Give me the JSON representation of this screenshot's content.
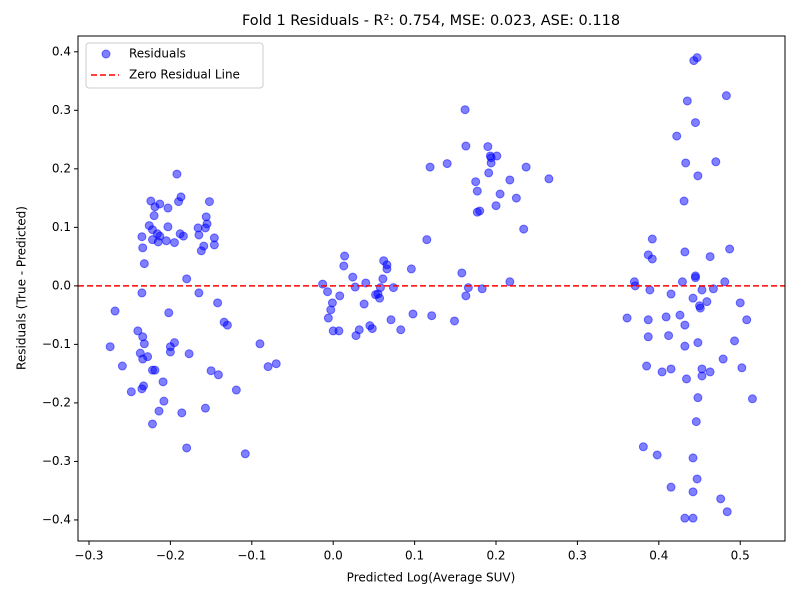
{
  "chart_data": {
    "type": "scatter",
    "title": "Fold 1 Residuals - R²: 0.754, MSE: 0.023, ASE: 0.118",
    "xlabel": "Predicted Log(Average SUV)",
    "ylabel": "Residuals (True - Predicted)",
    "xlim": [
      -0.3135,
      0.555
    ],
    "ylim": [
      -0.436,
      0.427
    ],
    "xticks": [
      {
        "value": -0.3,
        "label": "−0.3"
      },
      {
        "value": -0.2,
        "label": "−0.2"
      },
      {
        "value": -0.1,
        "label": "−0.1"
      },
      {
        "value": 0,
        "label": "0.0"
      },
      0.1,
      0.2,
      0.3,
      0.4,
      0.5
    ],
    "yticks": [
      {
        "value": -0.4,
        "label": "−0.4"
      },
      {
        "value": -0.3,
        "label": "−0.3"
      },
      {
        "value": -0.2,
        "label": "−0.2"
      },
      {
        "value": -0.1,
        "label": "−0.1"
      },
      {
        "value": 0,
        "label": "0.0"
      },
      0.1,
      0.2,
      0.3,
      0.4
    ],
    "legend": "upper left",
    "reference_line": {
      "name": "Zero Residual Line",
      "value": 0,
      "color": "red"
    },
    "series": [
      {
        "name": "Residuals",
        "color": "blue",
        "x": [
          -0.274,
          -0.268,
          -0.259,
          -0.248,
          -0.24,
          -0.237,
          -0.235,
          -0.235,
          -0.234,
          -0.234,
          -0.232,
          -0.234,
          -0.232,
          -0.235,
          -0.233,
          -0.228,
          -0.226,
          -0.224,
          -0.222,
          -0.222,
          -0.22,
          -0.219,
          -0.222,
          -0.222,
          -0.219,
          -0.216,
          -0.213,
          -0.215,
          -0.213,
          -0.214,
          -0.209,
          -0.208,
          -0.205,
          -0.203,
          -0.203,
          -0.202,
          -0.2,
          -0.2,
          -0.195,
          -0.195,
          -0.192,
          -0.19,
          -0.187,
          -0.188,
          -0.184,
          -0.186,
          -0.18,
          -0.18,
          -0.177,
          -0.166,
          -0.165,
          -0.165,
          -0.162,
          -0.159,
          -0.157,
          -0.157,
          -0.156,
          -0.155,
          -0.152,
          -0.15,
          -0.146,
          -0.146,
          -0.142,
          -0.141,
          -0.134,
          -0.13,
          -0.119,
          -0.108,
          -0.09,
          -0.08,
          -0.07,
          -0.013,
          -0.007,
          -0.006,
          -0.003,
          -0.001,
          0.0,
          0.007,
          0.008,
          0.013,
          0.014,
          0.024,
          0.027,
          0.028,
          0.032,
          0.038,
          0.04,
          0.045,
          0.048,
          0.052,
          0.055,
          0.058,
          0.057,
          0.061,
          0.062,
          0.066,
          0.066,
          0.071,
          0.074,
          0.083,
          0.096,
          0.098,
          0.115,
          0.119,
          0.121,
          0.14,
          0.149,
          0.158,
          0.162,
          0.163,
          0.163,
          0.166,
          0.175,
          0.177,
          0.177,
          0.18,
          0.183,
          0.19,
          0.191,
          0.193,
          0.194,
          0.194,
          0.201,
          0.2,
          0.205,
          0.217,
          0.217,
          0.225,
          0.234,
          0.237,
          0.265,
          0.361,
          0.37,
          0.371,
          0.381,
          0.385,
          0.387,
          0.387,
          0.387,
          0.389,
          0.392,
          0.392,
          0.398,
          0.404,
          0.409,
          0.412,
          0.415,
          0.415,
          0.415,
          0.422,
          0.426,
          0.429,
          0.431,
          0.432,
          0.432,
          0.432,
          0.432,
          0.433,
          0.434,
          0.435,
          0.442,
          0.442,
          0.442,
          0.442,
          0.443,
          0.445,
          0.445,
          0.445,
          0.446,
          0.447,
          0.448,
          0.448,
          0.448,
          0.447,
          0.45,
          0.451,
          0.453,
          0.453,
          0.453,
          0.459,
          0.463,
          0.463,
          0.467,
          0.47,
          0.476,
          0.479,
          0.481,
          0.483,
          0.484,
          0.487,
          0.493,
          0.5,
          0.502,
          0.508,
          0.515
        ],
        "values": [
          -0.104,
          -0.043,
          -0.137,
          -0.181,
          -0.077,
          -0.115,
          0.084,
          -0.012,
          -0.087,
          0.065,
          0.038,
          -0.125,
          -0.099,
          -0.176,
          -0.171,
          -0.121,
          0.103,
          0.145,
          0.096,
          -0.144,
          0.12,
          -0.144,
          0.079,
          -0.236,
          0.135,
          0.089,
          0.085,
          0.075,
          0.14,
          -0.214,
          -0.164,
          -0.197,
          0.077,
          0.133,
          0.101,
          -0.046,
          -0.104,
          -0.113,
          0.074,
          -0.097,
          0.191,
          0.144,
          0.152,
          0.089,
          0.085,
          -0.217,
          0.012,
          -0.277,
          -0.116,
          0.099,
          -0.012,
          0.087,
          0.06,
          0.068,
          0.099,
          -0.209,
          0.118,
          0.106,
          0.144,
          -0.145,
          0.082,
          0.07,
          -0.029,
          -0.152,
          -0.062,
          -0.067,
          -0.178,
          -0.287,
          -0.099,
          -0.138,
          -0.133,
          0.003,
          -0.01,
          -0.055,
          -0.041,
          -0.029,
          -0.077,
          -0.077,
          -0.017,
          0.034,
          0.051,
          0.015,
          -0.002,
          -0.085,
          -0.075,
          -0.031,
          0.005,
          -0.068,
          -0.073,
          -0.015,
          -0.014,
          -0.003,
          -0.021,
          0.012,
          0.043,
          0.036,
          0.029,
          -0.058,
          -0.003,
          -0.075,
          0.029,
          -0.048,
          0.079,
          0.203,
          -0.051,
          0.209,
          -0.06,
          0.022,
          0.301,
          0.239,
          -0.017,
          -0.003,
          0.178,
          0.162,
          0.126,
          0.128,
          -0.005,
          0.238,
          0.193,
          0.222,
          0.219,
          0.21,
          0.222,
          0.137,
          0.157,
          0.181,
          0.007,
          0.15,
          0.097,
          0.203,
          0.183,
          -0.055,
          0.007,
          0.0,
          -0.275,
          -0.137,
          0.053,
          -0.058,
          -0.087,
          -0.007,
          0.08,
          0.046,
          -0.289,
          -0.147,
          -0.053,
          -0.085,
          -0.014,
          -0.344,
          -0.142,
          0.256,
          -0.05,
          0.007,
          0.145,
          -0.397,
          -0.103,
          -0.067,
          0.058,
          0.21,
          -0.159,
          0.316,
          -0.397,
          -0.352,
          -0.294,
          -0.021,
          0.385,
          0.279,
          0.014,
          0.017,
          -0.232,
          0.39,
          -0.097,
          0.188,
          -0.191,
          -0.33,
          -0.034,
          -0.038,
          -0.142,
          -0.154,
          -0.007,
          -0.027,
          0.05,
          -0.147,
          -0.005,
          0.212,
          -0.364,
          -0.125,
          0.007,
          0.325,
          -0.386,
          0.063,
          -0.094,
          -0.029,
          -0.14,
          -0.058,
          -0.193
        ]
      }
    ]
  }
}
